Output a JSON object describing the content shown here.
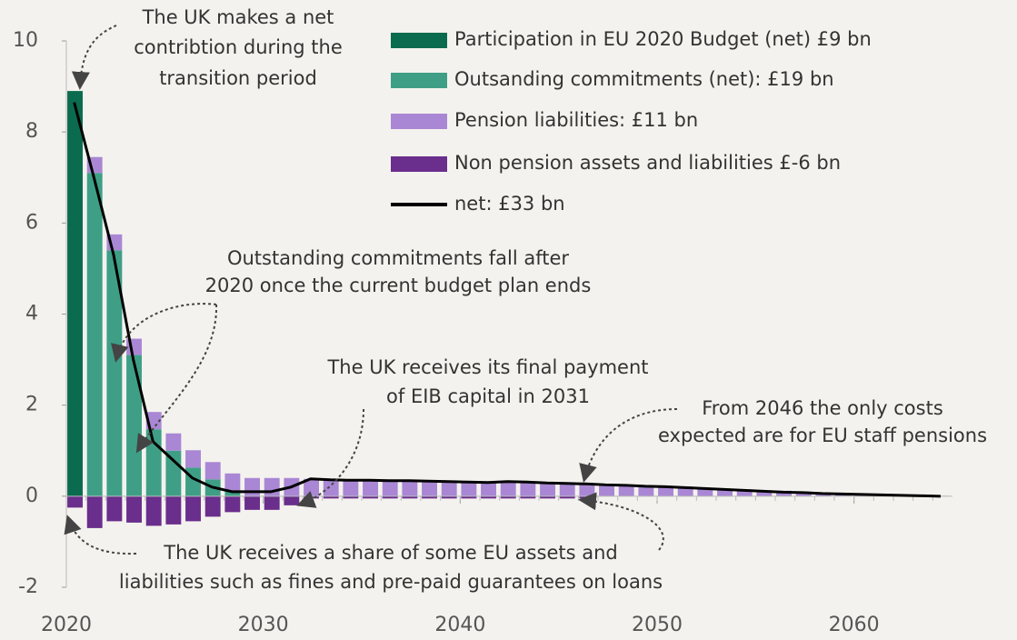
{
  "chart_data": {
    "type": "bar",
    "x": [
      2020,
      2021,
      2022,
      2023,
      2024,
      2025,
      2026,
      2027,
      2028,
      2029,
      2030,
      2031,
      2032,
      2033,
      2034,
      2035,
      2036,
      2037,
      2038,
      2039,
      2040,
      2041,
      2042,
      2043,
      2044,
      2045,
      2046,
      2047,
      2048,
      2049,
      2050,
      2051,
      2052,
      2053,
      2054,
      2055,
      2056,
      2057,
      2058,
      2059,
      2060,
      2061,
      2062,
      2063,
      2064
    ],
    "series": [
      {
        "name": "Participation in EU 2020 Budget (net) £9 bn",
        "color": "#0b6b4e",
        "values": [
          8.9,
          0,
          0,
          0,
          0,
          0,
          0,
          0,
          0,
          0,
          0,
          0,
          0,
          0,
          0,
          0,
          0,
          0,
          0,
          0,
          0,
          0,
          0,
          0,
          0,
          0,
          0,
          0,
          0,
          0,
          0,
          0,
          0,
          0,
          0,
          0,
          0,
          0,
          0,
          0,
          0,
          0,
          0,
          0,
          0
        ]
      },
      {
        "name": "Outsanding commitments (net): £19 bn",
        "color": "#3e9f86",
        "values": [
          0,
          7.1,
          5.4,
          3.1,
          1.47,
          1.0,
          0.63,
          0.37,
          0.12,
          0,
          0,
          0,
          0,
          0,
          0,
          0,
          0,
          0,
          0,
          0,
          0,
          0,
          0,
          0,
          0,
          0,
          0,
          0,
          0,
          0,
          0,
          0,
          0,
          0,
          0,
          0,
          0,
          0,
          0,
          0,
          0,
          0,
          0,
          0,
          0
        ]
      },
      {
        "name": "Pension liabilities: £11 bn",
        "color": "#a987d4",
        "values": [
          0,
          0.35,
          0.35,
          0.36,
          0.38,
          0.38,
          0.38,
          0.38,
          0.38,
          0.4,
          0.4,
          0.4,
          0.38,
          0.37,
          0.36,
          0.35,
          0.34,
          0.33,
          0.32,
          0.31,
          0.3,
          0.29,
          0.3,
          0.29,
          0.28,
          0.27,
          0.26,
          0.25,
          0.24,
          0.22,
          0.21,
          0.2,
          0.18,
          0.16,
          0.15,
          0.13,
          0.12,
          0.1,
          0.08,
          0.07,
          0.05,
          0.04,
          0.03,
          0.02,
          0.01
        ]
      },
      {
        "name": "Non pension assets and liabilities £-6 bn",
        "color": "#6a2e8c",
        "values": [
          -0.25,
          -0.7,
          -0.55,
          -0.58,
          -0.65,
          -0.62,
          -0.55,
          -0.45,
          -0.35,
          -0.3,
          -0.3,
          -0.2,
          -0.05,
          -0.05,
          -0.05,
          -0.05,
          -0.05,
          -0.05,
          -0.05,
          -0.05,
          -0.05,
          -0.05,
          -0.05,
          -0.05,
          -0.05,
          -0.05,
          -0.05,
          0,
          0,
          0,
          0,
          0,
          0,
          0,
          0,
          0,
          0,
          0,
          0,
          0,
          0,
          0,
          0,
          0,
          0
        ]
      }
    ],
    "line": {
      "name": "net: £33 bn",
      "color": "#000000",
      "values": [
        8.65,
        7.0,
        5.3,
        3.0,
        1.2,
        0.8,
        0.4,
        0.2,
        0.1,
        0.1,
        0.1,
        0.2,
        0.38,
        0.36,
        0.35,
        0.35,
        0.34,
        0.34,
        0.33,
        0.32,
        0.31,
        0.3,
        0.32,
        0.31,
        0.29,
        0.28,
        0.27,
        0.25,
        0.24,
        0.22,
        0.21,
        0.19,
        0.17,
        0.15,
        0.13,
        0.11,
        0.09,
        0.08,
        0.06,
        0.05,
        0.04,
        0.03,
        0.02,
        0.01,
        0.0
      ]
    },
    "xlim": [
      2020,
      2065
    ],
    "xticks": [
      2020,
      2030,
      2040,
      2050,
      2060
    ],
    "ylim": [
      -2,
      10
    ],
    "yticks": [
      -2,
      0,
      2,
      4,
      6,
      8,
      10
    ],
    "annotations": [
      {
        "lines": [
          "The UK makes a net",
          "contribtion during the",
          "transition period"
        ]
      },
      {
        "lines": [
          "Outstanding commitments fall after",
          "2020 once the current budget plan ends"
        ]
      },
      {
        "lines": [
          "The UK receives its final payment",
          "of EIB capital in 2031"
        ]
      },
      {
        "lines": [
          "From 2046 the only costs",
          "expected are for EU staff pensions"
        ]
      },
      {
        "lines": [
          "The UK receives a share of some EU assets and",
          "liabilities such as fines and pre-paid guarantees on loans"
        ]
      }
    ]
  }
}
